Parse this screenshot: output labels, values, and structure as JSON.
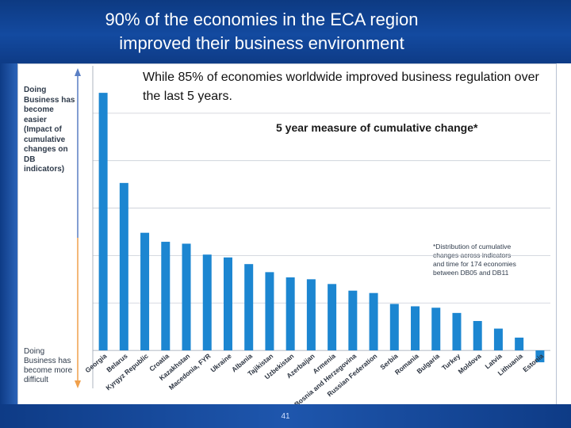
{
  "slide": {
    "title": "90% of the economies in the ECA region\nimproved their business environment",
    "subtitle": "While 85% of economies worldwide improved business regulation over the last 5 years.",
    "page_number": "41"
  },
  "chart_data": {
    "type": "bar",
    "title": "5 year measure of cumulative change*",
    "xlabel": "",
    "ylabel": "",
    "y_top_label": "Doing\nBusiness has\nbecome\neasier\n(Impact of\ncumulative\nchanges on\nDB\nindicators)",
    "y_bottom_label": "Doing\nBusiness has\nbecome more\ndifficult",
    "note": "*Distribution of cumulative\nchanges across indicators\nand time for 174 economies\nbetween DB05 and DB11",
    "categories": [
      "Georgia",
      "Belarus",
      "Kyrgyz Republic",
      "Croatia",
      "Kazakhstan",
      "Macedonia, FYR",
      "Ukraine",
      "Albania",
      "Tajikistan",
      "Uzbekistan",
      "Azerbaijan",
      "Armenia",
      "Bosnia and Herzegovina",
      "Russian Federation",
      "Serbia",
      "Romania",
      "Bulgaria",
      "Turkey",
      "Moldova",
      "Latvia",
      "Lithuania",
      "Estonia"
    ],
    "values": [
      0.543,
      0.353,
      0.248,
      0.229,
      0.225,
      0.202,
      0.196,
      0.182,
      0.165,
      0.154,
      0.15,
      0.14,
      0.126,
      0.121,
      0.098,
      0.093,
      0.09,
      0.079,
      0.062,
      0.046,
      0.027,
      -0.025
    ],
    "ylim": [
      -0.08,
      0.6
    ],
    "grid": true,
    "bar_color": "#1c86d1",
    "arrow_color_top": "#5a7fc4",
    "arrow_color_bottom": "#f0a04b"
  }
}
